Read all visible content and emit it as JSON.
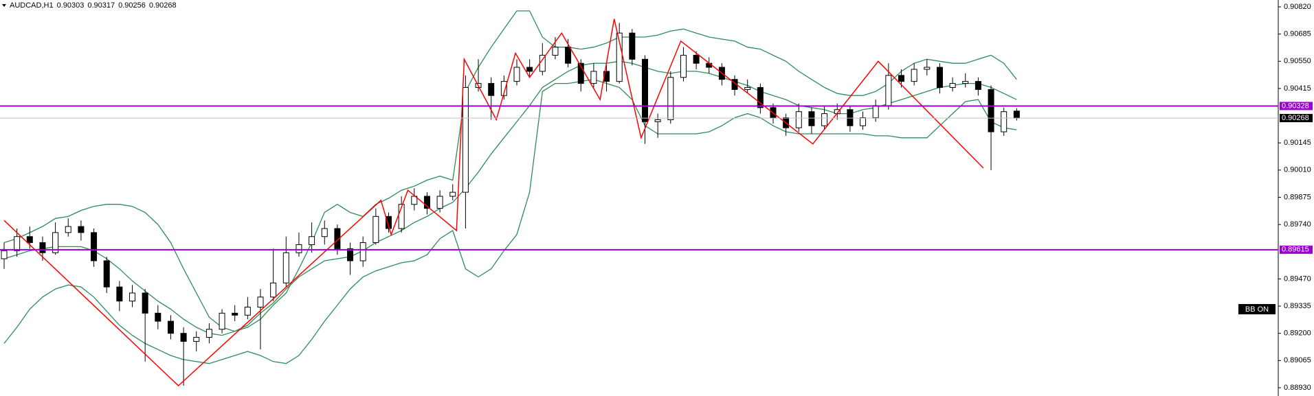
{
  "chart_data": {
    "type": "candlestick",
    "title": "AUDCAD,H1",
    "annotation": "BB ON",
    "up_color": "#ffffff",
    "down_color": "#000000",
    "ylim": [
      0.88889,
      0.90854
    ],
    "yticks": [
      {
        "value": 0.9082,
        "label": "0.90820"
      },
      0.90685,
      {
        "value": 0.9055,
        "label": "0.90550"
      },
      0.90415,
      0.90145,
      {
        "value": 0.9001,
        "label": "0.90010"
      },
      0.89875,
      {
        "value": 0.8974,
        "label": "0.89740"
      },
      {
        "value": 0.8947,
        "label": "0.89470"
      },
      0.89335,
      {
        "value": 0.892,
        "label": "0.89200"
      },
      0.89065,
      {
        "value": 0.8893,
        "label": "0.88930"
      }
    ],
    "open": [
      0.8957,
      0.8961,
      0.8968,
      0.8965,
      0.896,
      0.897,
      0.8973,
      0.897,
      0.8956,
      0.8943,
      0.8936,
      0.894,
      0.893,
      0.8926,
      0.892,
      0.8916,
      0.8918,
      0.8922,
      0.893,
      0.8929,
      0.8933,
      0.8938,
      0.8945,
      0.896,
      0.8964,
      0.8968,
      0.8972,
      0.8962,
      0.8956,
      0.8965,
      0.8978,
      0.8972,
      0.8984,
      0.8988,
      0.8982,
      0.8988,
      0.899,
      0.9042,
      0.9044,
      0.9038,
      0.9045,
      0.9052,
      0.905,
      0.9058,
      0.9062,
      0.9054,
      0.9044,
      0.905,
      0.9045,
      0.9069,
      0.9056,
      0.9025,
      0.9026,
      0.9047,
      0.9058,
      0.9054,
      0.9052,
      0.9046,
      0.9041,
      0.9042,
      0.9032,
      0.9027,
      0.9022,
      0.903,
      0.9023,
      0.9029,
      0.9031,
      0.9023,
      0.9027,
      0.9033,
      0.9048,
      0.9045,
      0.9051,
      0.9052,
      0.9042,
      0.9044,
      0.9045,
      0.9041,
      0.902,
      0.90303
    ],
    "high": [
      0.8965,
      0.8972,
      0.8973,
      0.8968,
      0.8975,
      0.8977,
      0.8976,
      0.8972,
      0.8958,
      0.8946,
      0.8944,
      0.8942,
      0.8934,
      0.8929,
      0.8923,
      0.8921,
      0.8925,
      0.8932,
      0.8934,
      0.8938,
      0.8942,
      0.8962,
      0.8968,
      0.897,
      0.8975,
      0.8976,
      0.8974,
      0.8965,
      0.8968,
      0.8982,
      0.898,
      0.8988,
      0.8992,
      0.899,
      0.8991,
      0.8994,
      0.9048,
      0.9056,
      0.9047,
      0.9048,
      0.9056,
      0.9056,
      0.9064,
      0.9067,
      0.9066,
      0.9056,
      0.9054,
      0.9053,
      0.9074,
      0.9071,
      0.9058,
      0.9029,
      0.905,
      0.9062,
      0.906,
      0.9057,
      0.9054,
      0.9048,
      0.9046,
      0.9044,
      0.9034,
      0.9029,
      0.9034,
      0.9032,
      0.9033,
      0.9034,
      0.9033,
      0.903,
      0.9036,
      0.9054,
      0.9051,
      0.9054,
      0.9056,
      0.9054,
      0.9047,
      0.9049,
      0.9047,
      0.9043,
      0.9032,
      0.90317
    ],
    "low": [
      0.8952,
      0.8958,
      0.8962,
      0.8956,
      0.8959,
      0.8968,
      0.8966,
      0.8953,
      0.894,
      0.8931,
      0.8933,
      0.8906,
      0.8922,
      0.8917,
      0.8894,
      0.8911,
      0.8915,
      0.892,
      0.8926,
      0.8927,
      0.8912,
      0.8936,
      0.8943,
      0.8958,
      0.896,
      0.8964,
      0.8959,
      0.8949,
      0.8953,
      0.8964,
      0.897,
      0.897,
      0.8981,
      0.8979,
      0.898,
      0.8986,
      0.8972,
      0.904,
      0.9026,
      0.9036,
      0.9043,
      0.9047,
      0.9048,
      0.9056,
      0.9052,
      0.904,
      0.9042,
      0.904,
      0.9044,
      0.9053,
      0.9014,
      0.9017,
      0.9024,
      0.9045,
      0.9051,
      0.9049,
      0.9043,
      0.9038,
      0.9039,
      0.9029,
      0.9024,
      0.9018,
      0.902,
      0.9019,
      0.9021,
      0.9026,
      0.902,
      0.9021,
      0.9025,
      0.9031,
      0.9042,
      0.9043,
      0.9048,
      0.9039,
      0.904,
      0.9042,
      0.9038,
      0.9001,
      0.9018,
      0.90256
    ],
    "close": [
      0.8961,
      0.8968,
      0.8965,
      0.896,
      0.897,
      0.8973,
      0.897,
      0.8956,
      0.8943,
      0.8936,
      0.894,
      0.893,
      0.8926,
      0.892,
      0.8916,
      0.8918,
      0.8922,
      0.893,
      0.8929,
      0.8933,
      0.8938,
      0.8945,
      0.896,
      0.8964,
      0.8968,
      0.8972,
      0.8962,
      0.8956,
      0.8965,
      0.8978,
      0.8972,
      0.8984,
      0.8988,
      0.8982,
      0.8988,
      0.899,
      0.9042,
      0.9044,
      0.9038,
      0.9045,
      0.9052,
      0.905,
      0.9058,
      0.9062,
      0.9054,
      0.9044,
      0.905,
      0.9045,
      0.9069,
      0.9056,
      0.9025,
      0.9026,
      0.9047,
      0.9058,
      0.9054,
      0.9052,
      0.9046,
      0.9041,
      0.9042,
      0.9032,
      0.9027,
      0.9022,
      0.903,
      0.9023,
      0.9029,
      0.9031,
      0.9023,
      0.9027,
      0.9033,
      0.9048,
      0.9045,
      0.9051,
      0.9052,
      0.9042,
      0.9044,
      0.9045,
      0.9041,
      0.902,
      0.903,
      0.90268
    ],
    "bands": {
      "color": "#2e8b57",
      "upper": [
        0.8965,
        0.8967,
        0.897,
        0.8973,
        0.8977,
        0.8978,
        0.8981,
        0.8983,
        0.8984,
        0.8984,
        0.8983,
        0.898,
        0.8974,
        0.8965,
        0.8952,
        0.894,
        0.8928,
        0.8923,
        0.8921,
        0.8923,
        0.8927,
        0.8934,
        0.894,
        0.8952,
        0.8965,
        0.898,
        0.8984,
        0.898,
        0.8978,
        0.8984,
        0.8987,
        0.8991,
        0.8993,
        0.8996,
        0.8998,
        0.8996,
        0.904,
        0.9052,
        0.9062,
        0.9071,
        0.908,
        0.908,
        0.9067,
        0.9062,
        0.9062,
        0.9061,
        0.9062,
        0.9064,
        0.9067,
        0.9067,
        0.9067,
        0.9068,
        0.907,
        0.9071,
        0.9069,
        0.9067,
        0.9066,
        0.9065,
        0.9062,
        0.9061,
        0.9058,
        0.9055,
        0.905,
        0.9046,
        0.9042,
        0.9039,
        0.9038,
        0.9038,
        0.904,
        0.9044,
        0.905,
        0.9054,
        0.9056,
        0.9055,
        0.9054,
        0.9054,
        0.9056,
        0.9058,
        0.9054,
        0.9046
      ],
      "middle": [
        0.8957,
        0.8959,
        0.8961,
        0.8962,
        0.8963,
        0.8963,
        0.8963,
        0.8961,
        0.8957,
        0.8952,
        0.8946,
        0.8941,
        0.8936,
        0.8932,
        0.8927,
        0.8923,
        0.892,
        0.8919,
        0.8921,
        0.8924,
        0.893,
        0.8935,
        0.8942,
        0.8948,
        0.8952,
        0.8956,
        0.8957,
        0.8958,
        0.8961,
        0.8965,
        0.8968,
        0.8971,
        0.8975,
        0.8978,
        0.8982,
        0.8985,
        0.8992,
        0.9,
        0.9009,
        0.9017,
        0.9025,
        0.9033,
        0.9042,
        0.9046,
        0.905,
        0.9053,
        0.9054,
        0.9054,
        0.9055,
        0.9054,
        0.9052,
        0.905,
        0.9049,
        0.905,
        0.905,
        0.9049,
        0.9047,
        0.9045,
        0.9043,
        0.904,
        0.9038,
        0.9036,
        0.9033,
        0.9032,
        0.9031,
        0.9029,
        0.9029,
        0.9031,
        0.9032,
        0.9034,
        0.9036,
        0.9038,
        0.904,
        0.9042,
        0.9043,
        0.9044,
        0.9044,
        0.9042,
        0.9039,
        0.9036
      ],
      "lower": [
        0.8915,
        0.8923,
        0.8932,
        0.8938,
        0.8942,
        0.8944,
        0.8943,
        0.8938,
        0.8931,
        0.8924,
        0.8919,
        0.8915,
        0.8912,
        0.8909,
        0.8907,
        0.8906,
        0.8905,
        0.8907,
        0.8909,
        0.8911,
        0.8909,
        0.8906,
        0.8905,
        0.8909,
        0.8917,
        0.8926,
        0.8934,
        0.8942,
        0.8948,
        0.8951,
        0.8953,
        0.8955,
        0.8956,
        0.8959,
        0.8967,
        0.8971,
        0.8952,
        0.8948,
        0.8952,
        0.8961,
        0.8969,
        0.899,
        0.904,
        0.9044,
        0.9044,
        0.9045,
        0.9046,
        0.9044,
        0.9042,
        0.9036,
        0.9023,
        0.9019,
        0.9019,
        0.9019,
        0.9019,
        0.902,
        0.9023,
        0.9027,
        0.9029,
        0.9027,
        0.9023,
        0.902,
        0.9019,
        0.9019,
        0.9019,
        0.9019,
        0.9019,
        0.9019,
        0.9018,
        0.9018,
        0.9017,
        0.9017,
        0.9017,
        0.9023,
        0.9029,
        0.9035,
        0.9036,
        0.9025,
        0.9022,
        0.9021
      ]
    },
    "zigzag": {
      "color": "#ff0000",
      "x": [
        0,
        13.6,
        29.4,
        30.2,
        31.5,
        35.3,
        35.9,
        38.4,
        39.9,
        41,
        43.5,
        46.5,
        47.6,
        49.7,
        52.8,
        63.1,
        68.2,
        76.4
      ],
      "values": [
        0.8976,
        0.8894,
        0.8986,
        0.8969,
        0.8991,
        0.8971,
        0.9056,
        0.9026,
        0.9059,
        0.9047,
        0.9069,
        0.9036,
        0.9076,
        0.9017,
        0.9065,
        0.9014,
        0.9055,
        0.9002
      ]
    },
    "levels": [
      {
        "value": 0.90328,
        "color": "#9a00d0"
      },
      {
        "value": 0.89615,
        "color": "#9a00d0"
      }
    ]
  }
}
